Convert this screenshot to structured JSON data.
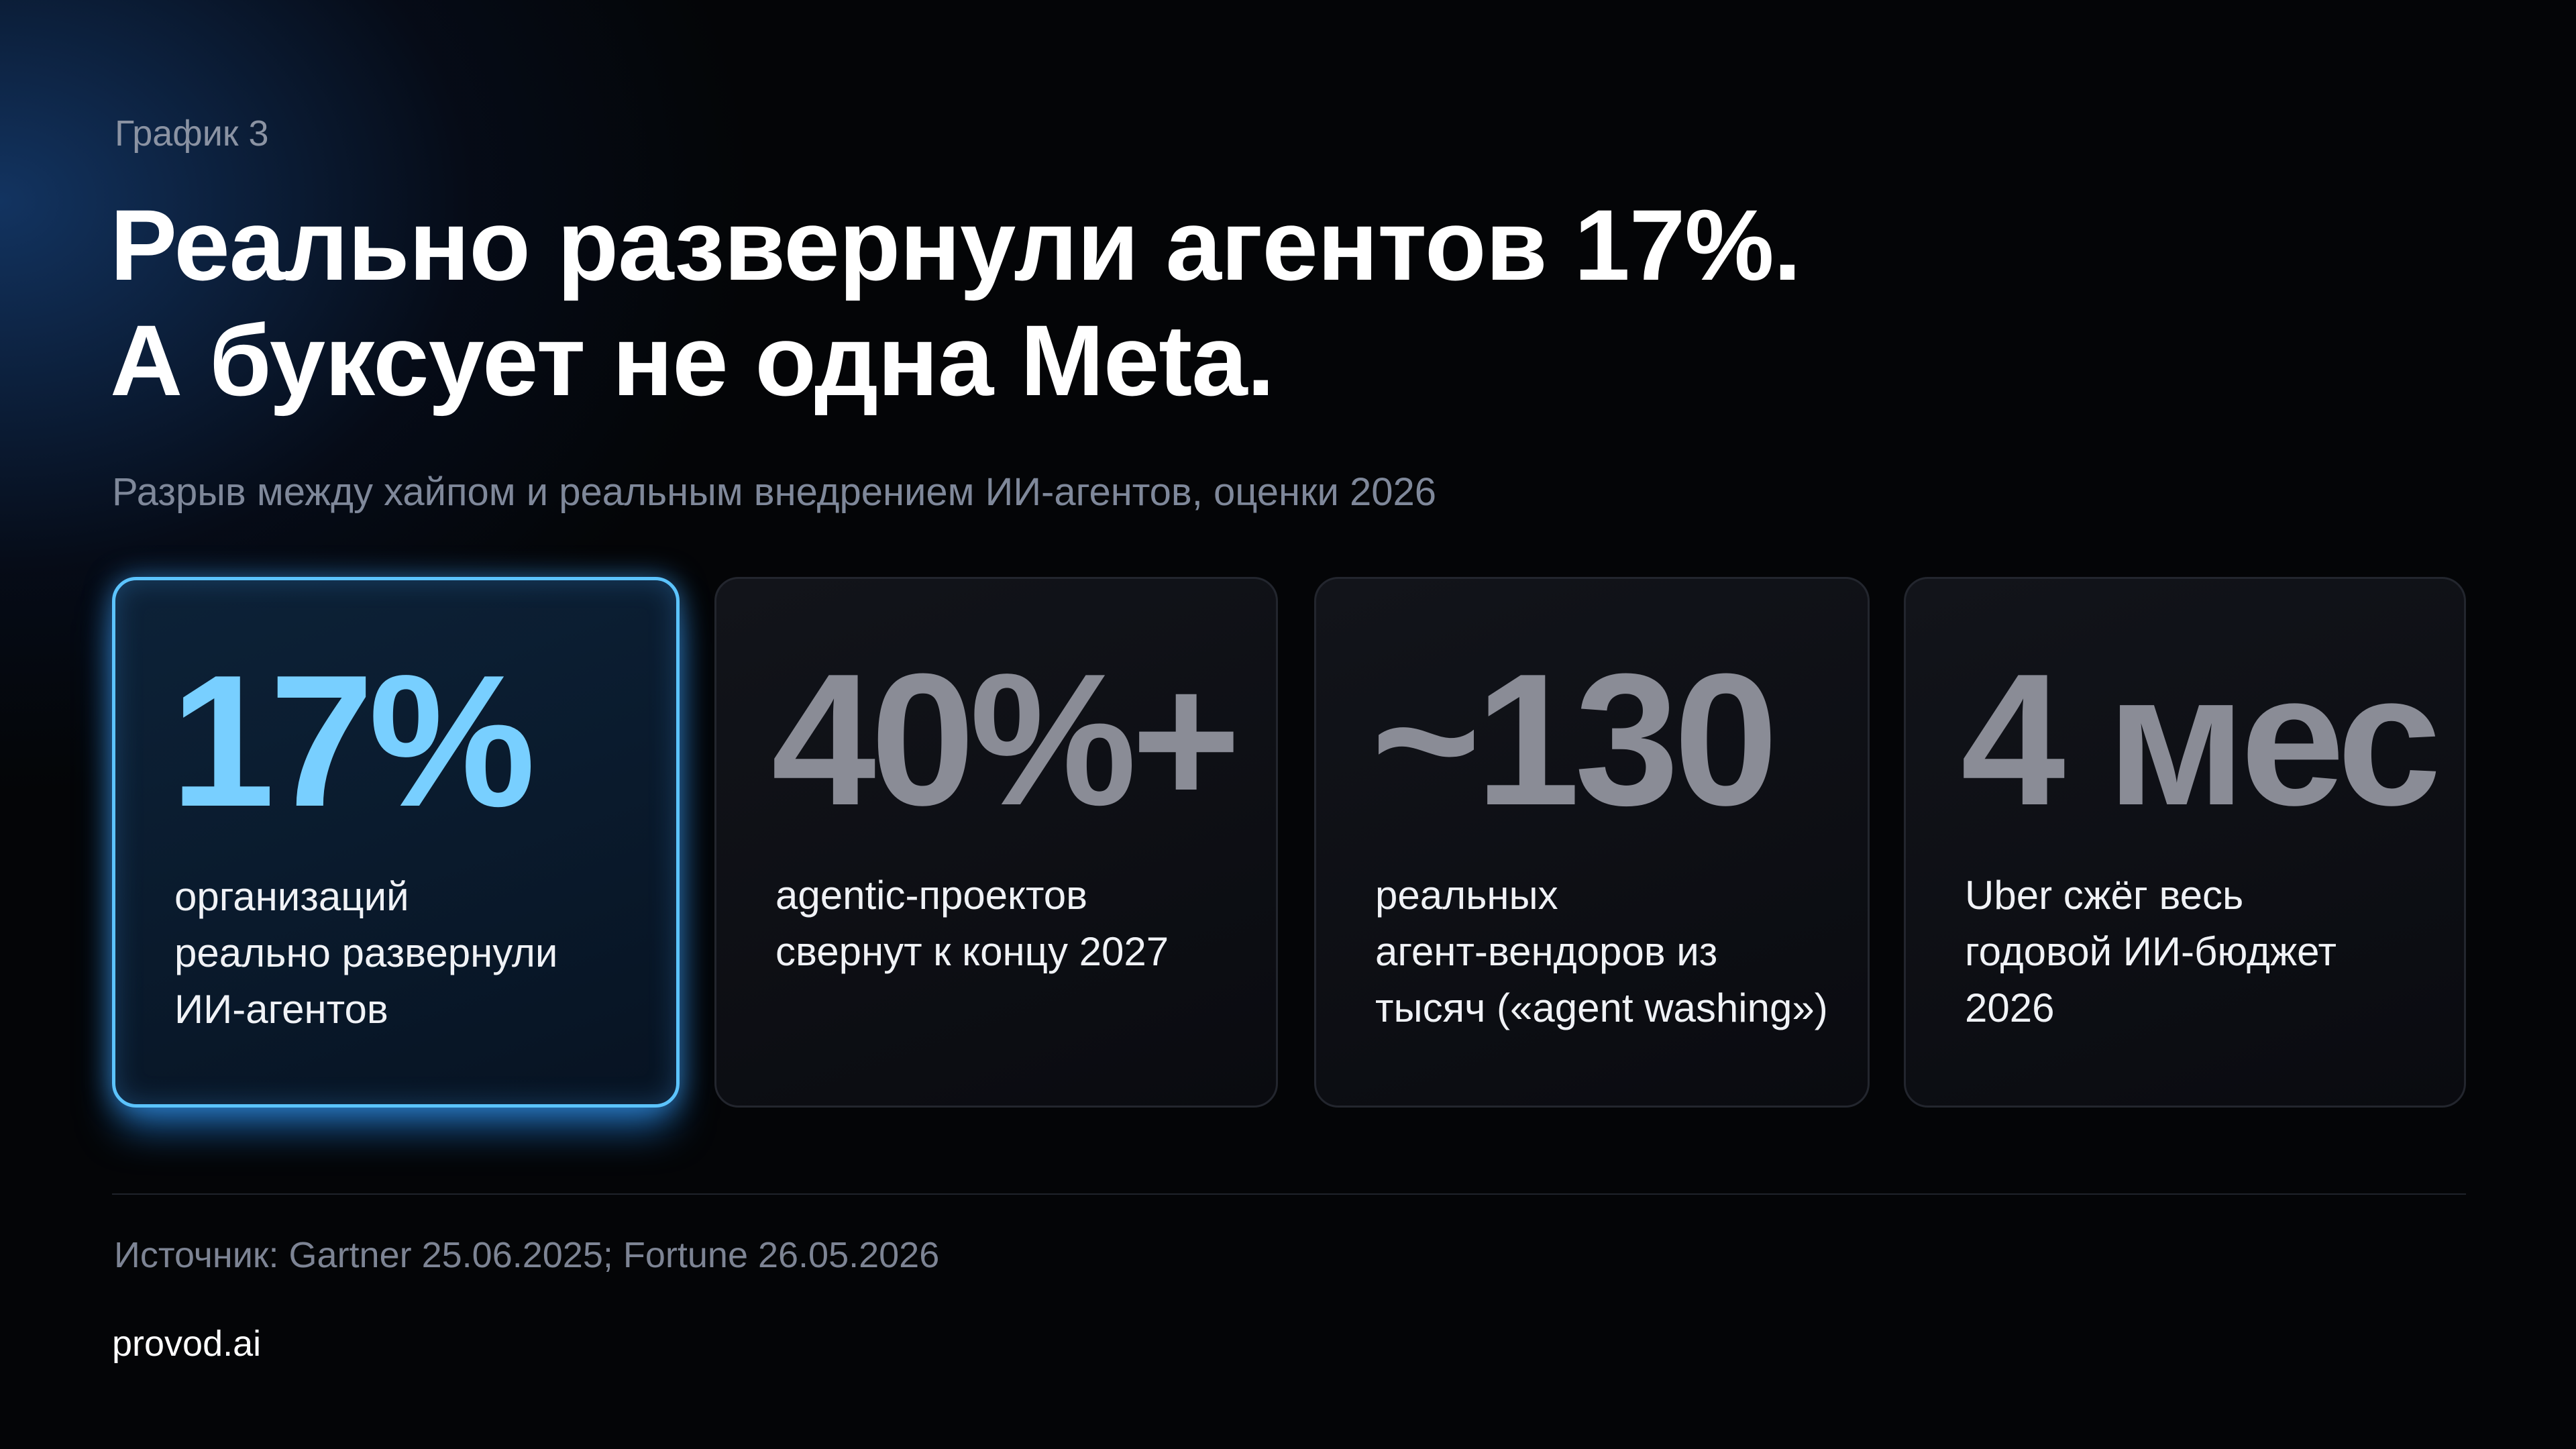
{
  "header": {
    "label": "График 3",
    "title_lines": [
      "Реально развернули агентов 17%.",
      "А буксует не одна Meta."
    ],
    "subtitle": "Разрыв между хайпом и реальным внедрением ИИ-агентов, оценки 2026"
  },
  "cards": [
    {
      "value": "17%",
      "lines": [
        "организаций",
        "реально развернули",
        "ИИ-агентов"
      ]
    },
    {
      "value": "40%+",
      "lines": [
        "agentic-проектов",
        "свернут к концу 2027"
      ]
    },
    {
      "value": "~130",
      "lines": [
        "реальных",
        "агент-вендоров из",
        "тысяч («agent washing»)"
      ]
    },
    {
      "value": "4 мес",
      "lines": [
        "Uber сжёг весь",
        "годовой ИИ-бюджет",
        "2026"
      ]
    }
  ],
  "footer": {
    "source": "Источник: Gartner 25.06.2025; Fortune 26.05.2026",
    "brand": "provod.ai"
  }
}
